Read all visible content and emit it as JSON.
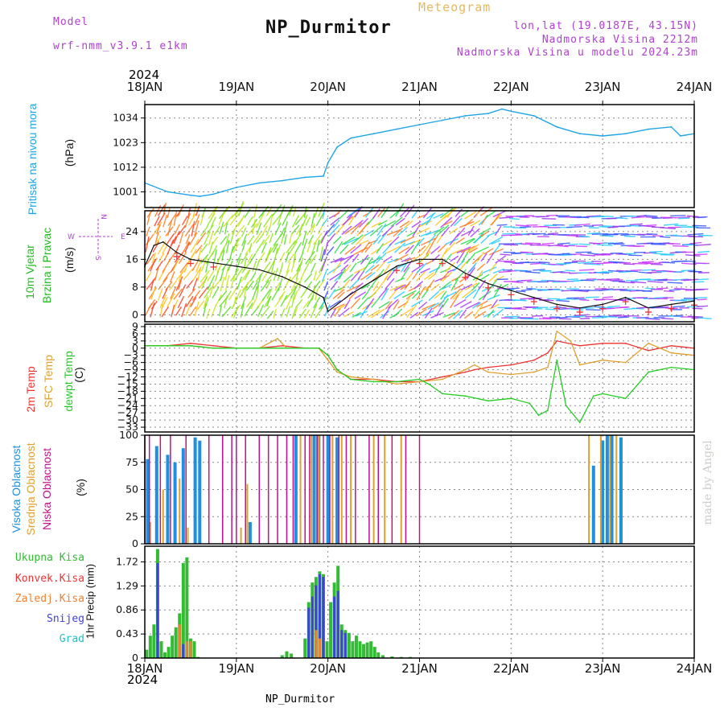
{
  "header": {
    "model_label": "Model",
    "model_name": "wrf-nmm_v3.9.1  e1km",
    "product": "Meteogram",
    "station": "NP_Durmitor",
    "lonlat": "lon,lat (19.0187E, 43.15N)",
    "elevation": "Nadmorska Visina 2212m",
    "model_elevation": "Nadmorska Visina u modelu 2024.23m",
    "year_top": "2024",
    "year_bottom": "2024",
    "footer_station": "NP_Durmitor",
    "watermark": "made by Angel"
  },
  "colors": {
    "pressure": "#1fa5e6",
    "temp2m": "#ee3333",
    "sfc": "#e0a030",
    "dewpt": "#22cc22",
    "high_cloud": "#1f8fe0",
    "mid_cloud": "#e0a030",
    "low_cloud": "#c0108a",
    "wind_label": "#22bb22",
    "purple": "#b040d0",
    "total_precip": "#33bb33",
    "conv_precip": "#ee3333",
    "frozen_precip": "#f08030",
    "snow": "#4040dd",
    "graupel": "#20c0c0"
  },
  "panel_labels": {
    "pressure": [
      "Pritisak na nivou mora",
      "(hPa)"
    ],
    "wind": [
      "10m Vjetar",
      "Brzina i Pravac",
      "(m/s)"
    ],
    "wind_compass": {
      "n": "N",
      "s": "S",
      "e": "E",
      "w": "W"
    },
    "temp": [
      "2m Temp",
      "SFC Temp",
      "dewpt Temp",
      "(C)"
    ],
    "cloud": [
      "Visoka Oblacnost",
      "Srednja Oblacnost",
      "Niska Oblacnost",
      "(%)"
    ],
    "precip_legend": [
      "Ukupna Kisa",
      "Konvek.Kisa",
      "Zaledj.Kisa",
      "Snijeg",
      "Grad"
    ],
    "precip_unit": "1hr Precip (mm)"
  },
  "chart_data": [
    {
      "type": "line",
      "name": "pressure",
      "x_ticks": [
        "18JAN",
        "19JAN",
        "20JAN",
        "21JAN",
        "22JAN",
        "23JAN",
        "24JAN"
      ],
      "y_ticks": [
        1001,
        1012,
        1023,
        1034
      ],
      "ylim": [
        994,
        1040
      ],
      "series": [
        {
          "name": "Pritisak na nivou mora",
          "x": [
            0,
            0.25,
            0.5,
            0.6,
            0.75,
            1.0,
            1.25,
            1.5,
            1.75,
            1.95,
            2.0,
            2.1,
            2.25,
            2.5,
            2.75,
            3.0,
            3.25,
            3.5,
            3.75,
            3.9,
            4.0,
            4.25,
            4.5,
            4.75,
            5.0,
            5.25,
            5.5,
            5.75,
            5.85,
            6.0
          ],
          "values": [
            1005,
            1001,
            999.5,
            999,
            1000,
            1003,
            1005,
            1006,
            1007.5,
            1008,
            1014,
            1021,
            1025,
            1027,
            1029,
            1031,
            1033,
            1035,
            1036,
            1038,
            1037,
            1035,
            1030,
            1027,
            1026,
            1027,
            1029,
            1030,
            1026,
            1027
          ]
        }
      ]
    },
    {
      "type": "line",
      "name": "wind",
      "x_ticks": [
        "18JAN",
        "19JAN",
        "20JAN",
        "21JAN",
        "22JAN",
        "23JAN",
        "24JAN"
      ],
      "y_ticks": [
        0,
        8,
        16,
        24
      ],
      "ylim": [
        -2,
        30
      ],
      "series": [
        {
          "name": "Brzina",
          "x": [
            0,
            0.1,
            0.2,
            0.35,
            0.5,
            0.75,
            1.0,
            1.25,
            1.5,
            1.75,
            1.95,
            2.0,
            2.25,
            2.5,
            2.75,
            3.0,
            3.25,
            3.5,
            3.75,
            4.0,
            4.25,
            4.5,
            4.75,
            5.0,
            5.25,
            5.5,
            5.75,
            6.0
          ],
          "values": [
            14,
            20,
            21,
            18,
            16,
            15,
            14,
            13,
            11,
            8,
            5,
            1,
            6,
            10,
            14,
            16,
            16,
            12,
            9,
            7,
            5,
            3,
            2,
            3,
            5,
            2,
            3,
            4
          ]
        }
      ]
    },
    {
      "type": "line",
      "name": "temperature",
      "x_ticks": [
        "18JAN",
        "19JAN",
        "20JAN",
        "21JAN",
        "22JAN",
        "23JAN",
        "24JAN"
      ],
      "y_ticks": [
        9,
        6,
        3,
        0,
        -3,
        -6,
        -9,
        -12,
        -15,
        -18,
        -21,
        -24,
        -27,
        -30,
        -33
      ],
      "ylim": [
        -35,
        10
      ],
      "series": [
        {
          "name": "2m Temp",
          "x": [
            0,
            0.25,
            0.5,
            0.75,
            1.0,
            1.25,
            1.5,
            1.75,
            1.9,
            2.0,
            2.1,
            2.25,
            2.5,
            2.75,
            3.0,
            3.25,
            3.5,
            3.6,
            3.75,
            4.0,
            4.25,
            4.4,
            4.5,
            4.75,
            5.0,
            5.25,
            5.5,
            5.75,
            6.0
          ],
          "values": [
            1,
            1,
            2,
            1,
            0,
            0,
            1,
            0,
            0,
            -3,
            -9,
            -13,
            -13,
            -14,
            -14,
            -12,
            -10,
            -9,
            -8,
            -7,
            -5,
            -2,
            3,
            1,
            2,
            2,
            -1,
            1,
            0
          ]
        },
        {
          "name": "SFC Temp",
          "x": [
            0,
            0.25,
            0.5,
            0.75,
            1.0,
            1.25,
            1.45,
            1.55,
            1.75,
            1.9,
            2.0,
            2.1,
            2.25,
            2.5,
            2.75,
            3.0,
            3.25,
            3.5,
            3.6,
            3.75,
            4.0,
            4.25,
            4.4,
            4.5,
            4.65,
            4.75,
            5.0,
            5.25,
            5.5,
            5.75,
            6.0
          ],
          "values": [
            1,
            1,
            1,
            0,
            0,
            0,
            4,
            0,
            0,
            0,
            -5,
            -10,
            -12,
            -13,
            -15,
            -14,
            -13,
            -9,
            -7,
            -10,
            -11,
            -10,
            -8,
            7,
            3,
            -7,
            -5,
            -6,
            2,
            -2,
            -3
          ]
        },
        {
          "name": "dewpt Temp",
          "x": [
            0,
            0.25,
            0.5,
            0.75,
            1.0,
            1.25,
            1.5,
            1.75,
            1.9,
            2.0,
            2.1,
            2.25,
            2.5,
            2.75,
            3.0,
            3.1,
            3.25,
            3.5,
            3.75,
            4.0,
            4.2,
            4.3,
            4.4,
            4.5,
            4.6,
            4.75,
            4.9,
            5.0,
            5.25,
            5.5,
            5.75,
            6.0
          ],
          "values": [
            1,
            1,
            1,
            0,
            0,
            0,
            0,
            0,
            0,
            -3,
            -9,
            -13,
            -14,
            -14,
            -13,
            -15,
            -19,
            -20,
            -22,
            -21,
            -23,
            -28,
            -26,
            -5,
            -24,
            -31,
            -20,
            -19,
            -21,
            -10,
            -8,
            -9
          ]
        }
      ]
    },
    {
      "type": "bar",
      "name": "cloud",
      "x_ticks": [
        "18JAN",
        "19JAN",
        "20JAN",
        "21JAN",
        "22JAN",
        "23JAN",
        "24JAN"
      ],
      "y_ticks": [
        0,
        25,
        50,
        75,
        100
      ],
      "ylim": [
        0,
        100
      ],
      "series": [
        {
          "name": "Visoka Oblacnost",
          "x": [
            0.03,
            0.13,
            0.25,
            0.33,
            0.42,
            0.55,
            0.6,
            1.15,
            1.65,
            1.85,
            1.9,
            2.0,
            2.1,
            4.9,
            5.0,
            5.05,
            5.1,
            5.2
          ],
          "values": [
            78,
            90,
            82,
            75,
            88,
            98,
            95,
            20,
            100,
            100,
            100,
            100,
            98,
            72,
            95,
            100,
            100,
            98
          ]
        },
        {
          "name": "Srednja Oblacnost",
          "x": [
            0.06,
            0.2,
            0.38,
            0.47,
            1.05,
            1.12,
            1.7,
            1.82,
            1.9,
            2.05,
            2.15,
            2.25,
            2.5,
            2.62,
            2.8,
            4.85,
            4.98,
            5.08,
            5.15
          ],
          "values": [
            20,
            50,
            60,
            15,
            15,
            55,
            100,
            100,
            100,
            100,
            100,
            100,
            100,
            100,
            100,
            100,
            100,
            100,
            100
          ]
        },
        {
          "name": "Niska Oblacnost",
          "x": [
            0.0,
            0.05,
            0.17,
            0.28,
            0.45,
            0.7,
            0.85,
            0.95,
            1.0,
            1.1,
            1.25,
            1.35,
            1.45,
            1.55,
            1.62,
            1.75,
            1.8,
            1.88,
            1.95,
            2.02,
            2.12,
            2.2,
            2.3,
            2.45,
            2.55,
            2.7,
            2.85,
            3.0
          ],
          "values": [
            100,
            100,
            100,
            100,
            100,
            100,
            100,
            100,
            100,
            100,
            100,
            100,
            100,
            100,
            100,
            100,
            100,
            100,
            100,
            100,
            100,
            100,
            100,
            100,
            100,
            100,
            100,
            100
          ]
        }
      ]
    },
    {
      "type": "bar",
      "name": "precipitation",
      "x_ticks": [
        "18JAN",
        "19JAN",
        "20JAN",
        "21JAN",
        "22JAN",
        "23JAN",
        "24JAN"
      ],
      "y_ticks": [
        0,
        0.43,
        0.86,
        1.29,
        1.72
      ],
      "ylim": [
        0,
        2.0
      ],
      "series": [
        {
          "name": "Ukupna Kisa",
          "x": [
            0.02,
            0.06,
            0.1,
            0.14,
            0.18,
            0.22,
            0.26,
            0.3,
            0.34,
            0.38,
            0.42,
            0.46,
            0.5,
            0.54,
            0.58,
            1.5,
            1.55,
            1.6,
            1.75,
            1.79,
            1.83,
            1.87,
            1.91,
            1.95,
            1.99,
            2.03,
            2.07,
            2.11,
            2.15,
            2.19,
            2.23,
            2.27,
            2.31,
            2.35,
            2.39,
            2.43,
            2.47,
            2.51,
            2.55,
            2.6,
            2.7,
            2.8,
            2.9
          ],
          "values": [
            0.15,
            0.4,
            0.6,
            1.95,
            0.3,
            0.1,
            0.2,
            0.4,
            0.55,
            0.8,
            1.7,
            1.8,
            0.35,
            0.3,
            0.02,
            0.05,
            0.12,
            0.08,
            0.35,
            1.0,
            1.35,
            1.45,
            1.55,
            1.5,
            0.3,
            1.0,
            1.35,
            1.65,
            0.6,
            0.5,
            0.45,
            0.3,
            0.4,
            0.3,
            0.25,
            0.28,
            0.3,
            0.2,
            0.1,
            0.05,
            0.03,
            0.02,
            0.02
          ]
        },
        {
          "name": "Snijeg",
          "x": [
            0.14,
            0.42,
            0.46,
            1.79,
            1.83,
            1.87,
            1.91,
            1.95,
            2.07,
            2.11,
            2.15,
            2.19
          ],
          "values": [
            1.7,
            0.25,
            0.15,
            0.9,
            1.1,
            1.3,
            1.5,
            1.45,
            1.1,
            1.2,
            0.5,
            0.45
          ]
        },
        {
          "name": "Zaledj.Kisa",
          "x": [
            0.38,
            0.46,
            0.5,
            1.87,
            1.91
          ],
          "values": [
            0.6,
            0.3,
            0.3,
            0.5,
            0.35
          ]
        }
      ]
    }
  ]
}
